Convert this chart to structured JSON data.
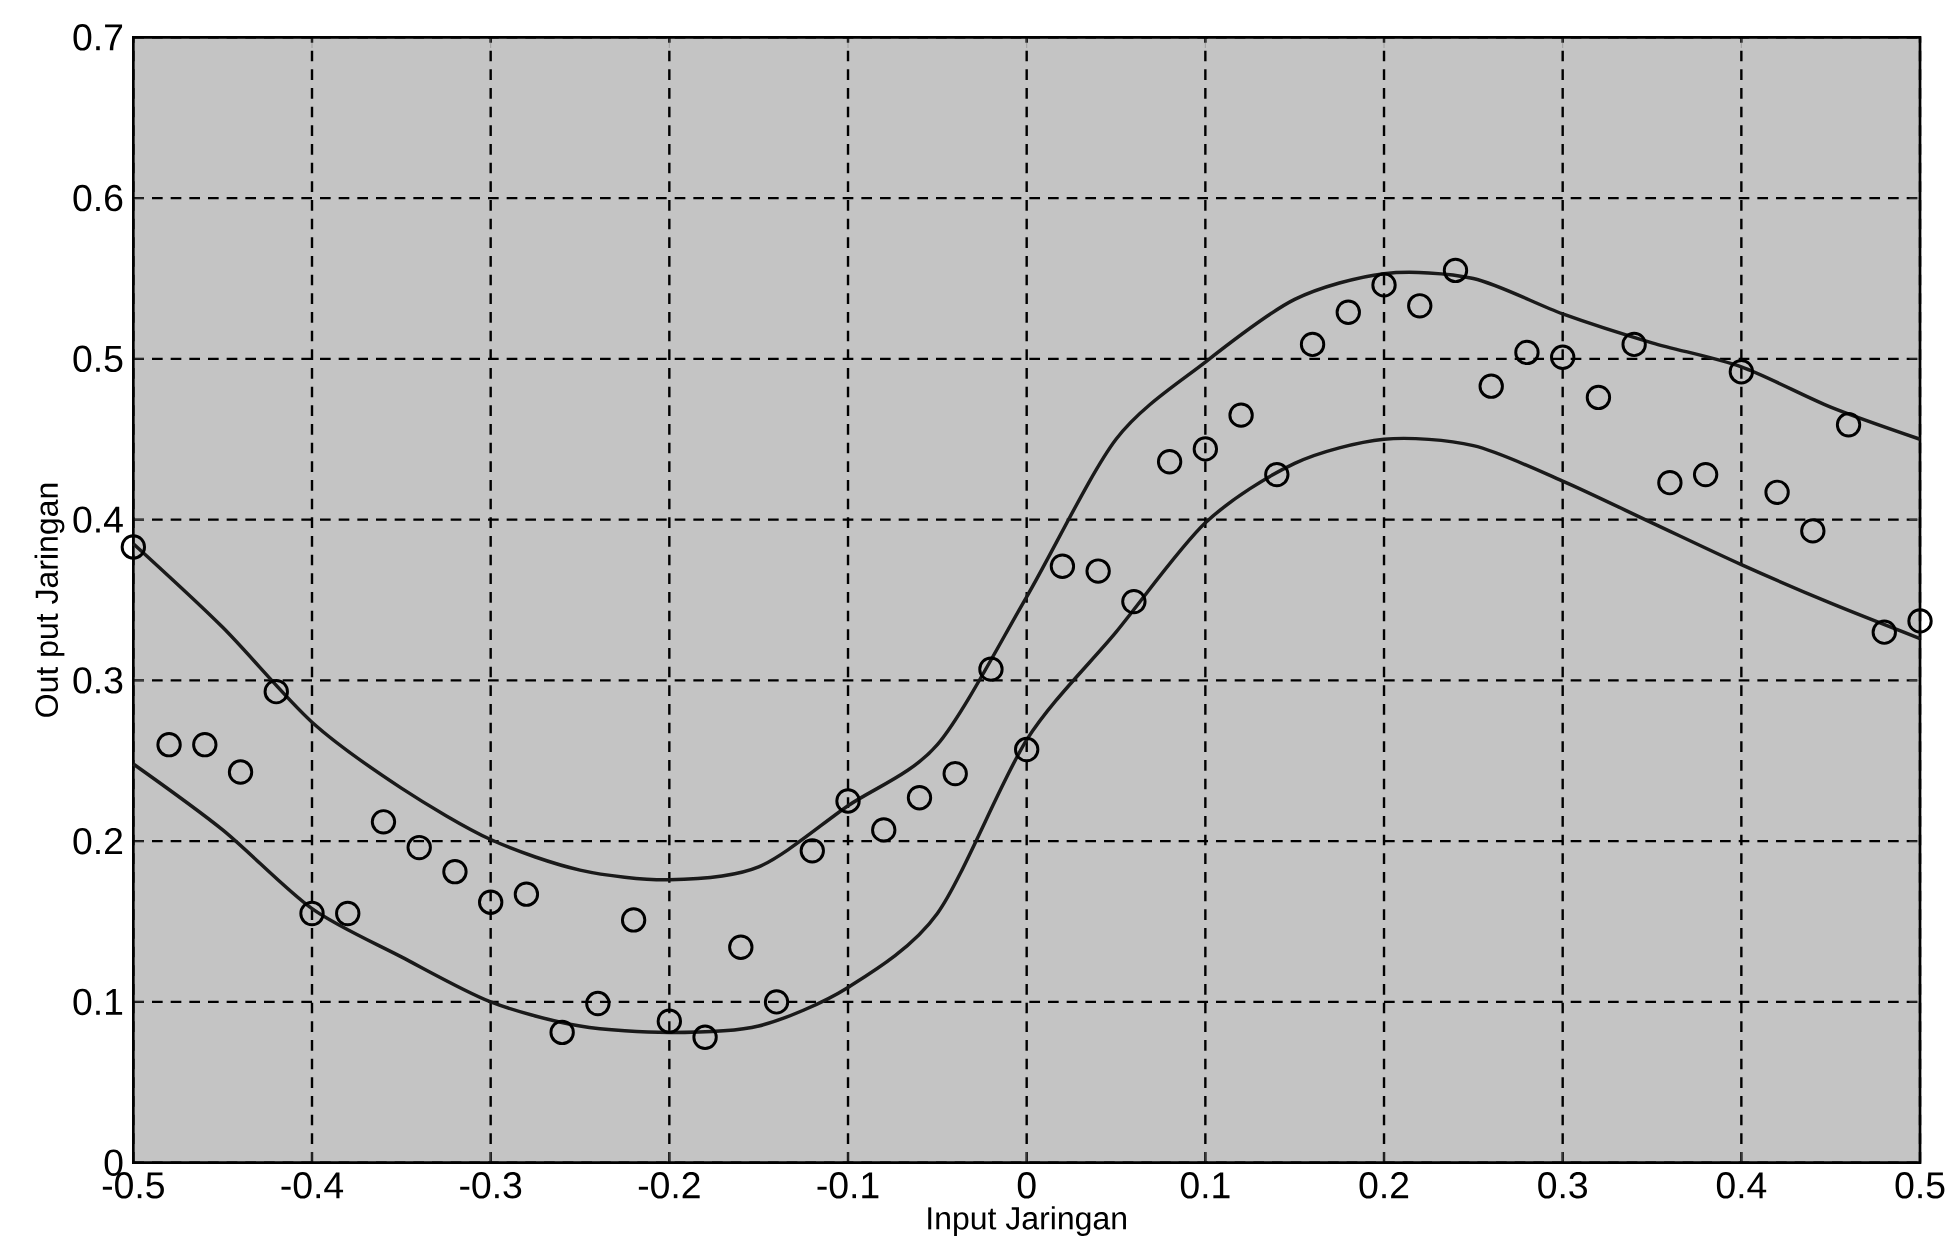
{
  "chart_data": {
    "type": "scatter",
    "xlabel": "Input Jaringan",
    "ylabel": "Out put Jaringan",
    "xlim": [
      -0.5,
      0.5
    ],
    "ylim": [
      0,
      0.7
    ],
    "xticks": [
      -0.5,
      -0.4,
      -0.3,
      -0.2,
      -0.1,
      0,
      0.1,
      0.2,
      0.3,
      0.4,
      0.5
    ],
    "yticks": [
      0,
      0.1,
      0.2,
      0.3,
      0.4,
      0.5,
      0.6,
      0.7
    ],
    "grid": true,
    "series": [
      {
        "marker": "circle",
        "color": "#000000",
        "x": [
          -0.5,
          -0.48,
          -0.46,
          -0.44,
          -0.42,
          -0.4,
          -0.38,
          -0.36,
          -0.34,
          -0.32,
          -0.3,
          -0.28,
          -0.26,
          -0.24,
          -0.22,
          -0.2,
          -0.18,
          -0.16,
          -0.14,
          -0.12,
          -0.1,
          -0.08,
          -0.06,
          -0.04,
          -0.02,
          0,
          0.02,
          0.04,
          0.06,
          0.08,
          0.1,
          0.12,
          0.14,
          0.16,
          0.18,
          0.2,
          0.22,
          0.24,
          0.26,
          0.28,
          0.3,
          0.32,
          0.34,
          0.36,
          0.38,
          0.4,
          0.42,
          0.44,
          0.46,
          0.48,
          0.5
        ],
        "values": [
          0.383,
          0.26,
          0.26,
          0.243,
          0.293,
          0.155,
          0.155,
          0.212,
          0.196,
          0.181,
          0.162,
          0.167,
          0.081,
          0.099,
          0.151,
          0.088,
          0.078,
          0.134,
          0.1,
          0.194,
          0.225,
          0.207,
          0.227,
          0.242,
          0.307,
          0.257,
          0.371,
          0.368,
          0.349,
          0.436,
          0.444,
          0.465,
          0.428,
          0.509,
          0.529,
          0.546,
          0.533,
          0.555,
          0.483,
          0.504,
          0.501,
          0.476,
          0.509,
          0.423,
          0.428,
          0.492,
          0.417,
          0.393,
          0.459,
          0.33,
          0.337
        ]
      },
      {
        "type": "line",
        "marker": "none",
        "line_style": "solid",
        "color": "#1a1a1a",
        "x": [
          -0.5,
          -0.45,
          -0.4,
          -0.35,
          -0.3,
          -0.25,
          -0.2,
          -0.15,
          -0.1,
          -0.05,
          0,
          0.05,
          0.1,
          0.15,
          0.2,
          0.25,
          0.3,
          0.35,
          0.4,
          0.45,
          0.5
        ],
        "values": [
          0.385,
          0.333,
          0.274,
          0.233,
          0.201,
          0.182,
          0.176,
          0.184,
          0.222,
          0.26,
          0.352,
          0.45,
          0.498,
          0.537,
          0.553,
          0.55,
          0.528,
          0.51,
          0.495,
          0.47,
          0.45
        ]
      },
      {
        "type": "line",
        "marker": "none",
        "line_style": "solid",
        "color": "#1a1a1a",
        "x": [
          -0.5,
          -0.45,
          -0.4,
          -0.35,
          -0.3,
          -0.25,
          -0.2,
          -0.15,
          -0.1,
          -0.05,
          0,
          0.05,
          0.1,
          0.15,
          0.2,
          0.25,
          0.3,
          0.35,
          0.4,
          0.45,
          0.5
        ],
        "values": [
          0.248,
          0.207,
          0.158,
          0.128,
          0.1,
          0.085,
          0.081,
          0.085,
          0.109,
          0.155,
          0.263,
          0.33,
          0.398,
          0.435,
          0.45,
          0.446,
          0.424,
          0.398,
          0.372,
          0.348,
          0.326
        ]
      }
    ]
  }
}
